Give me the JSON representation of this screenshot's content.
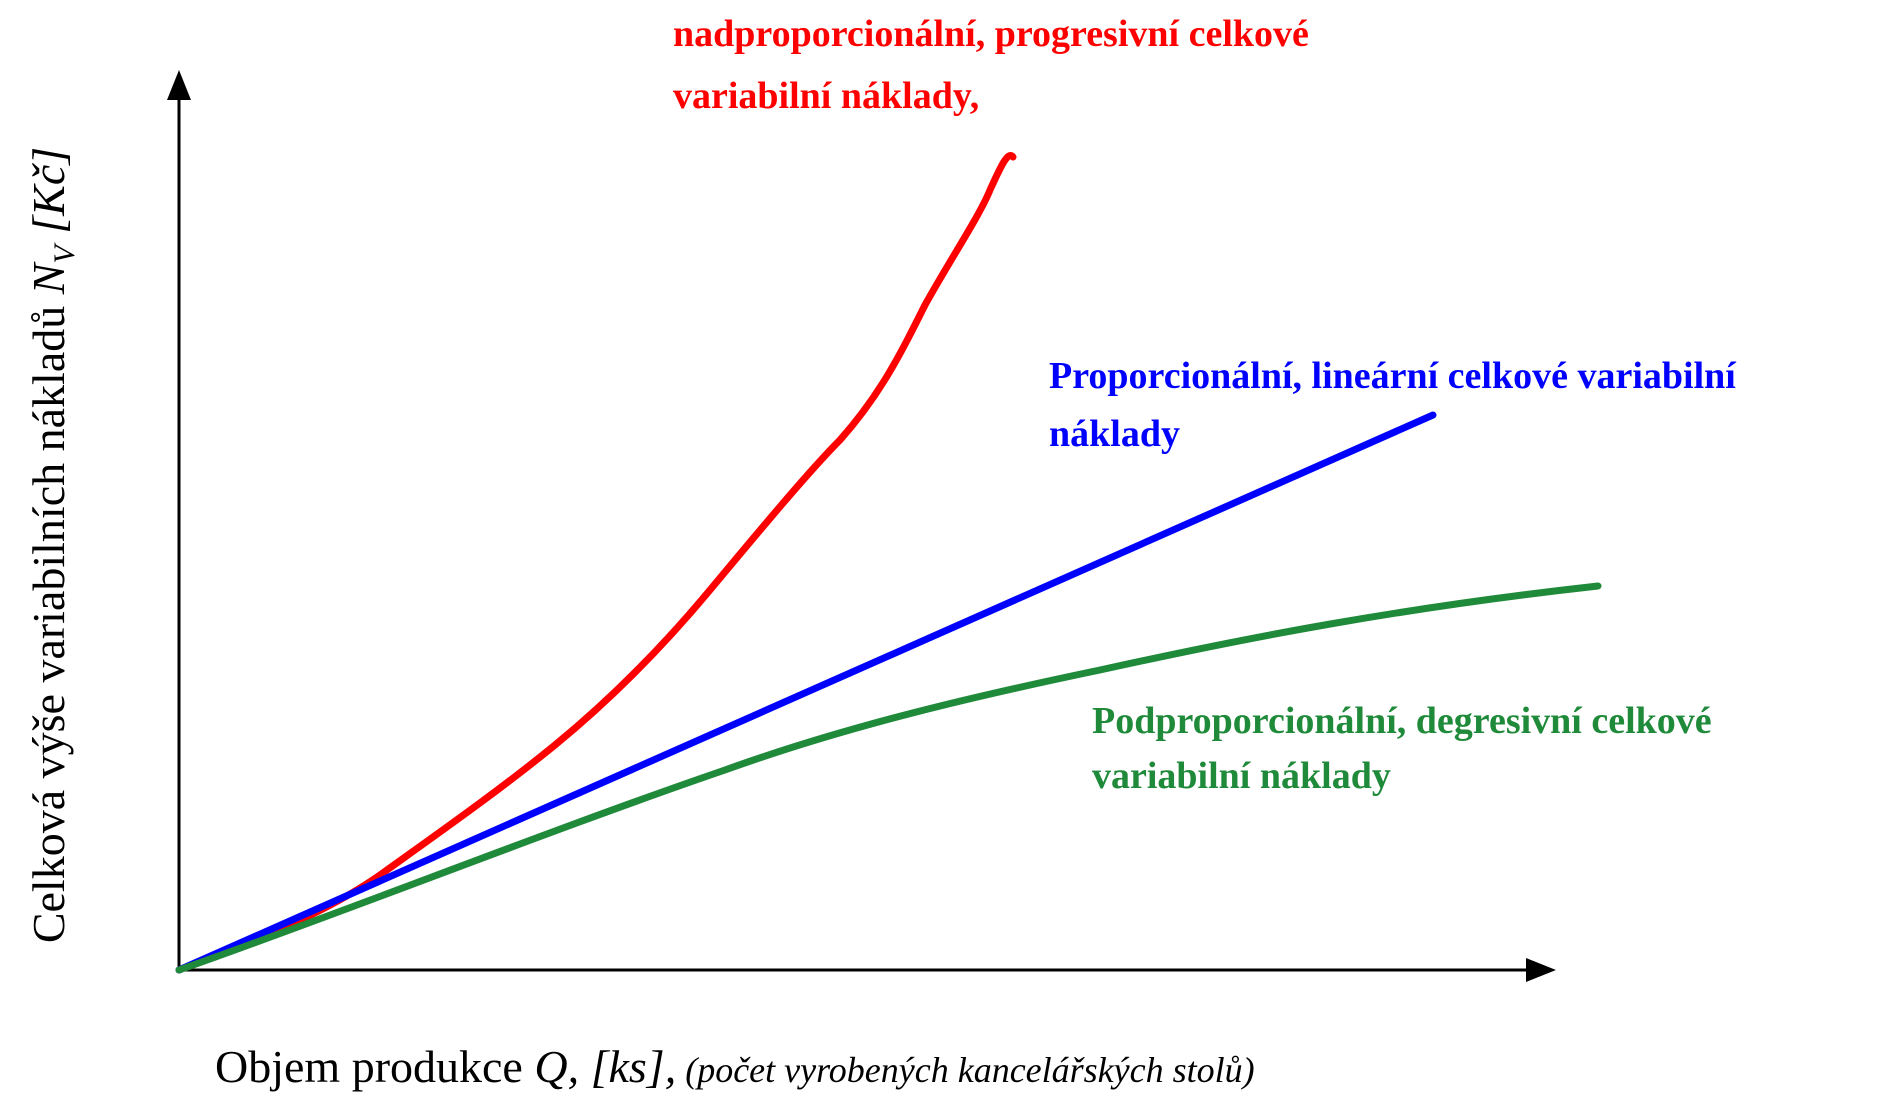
{
  "diagram": {
    "curves": [
      {
        "label": [
          "nadproporcionální, progresivní celkové",
          "variabilní náklady,"
        ],
        "color": "#ff0000"
      },
      {
        "label": [
          "Proporcionální, lineární celkové variabilní",
          "náklady"
        ],
        "color": "#0000ff"
      },
      {
        "label": [
          "Podproporcionální, degresivní celkové",
          "variabilní náklady"
        ],
        "color": "#1f8a3a"
      }
    ],
    "y_axis_label": {
      "text": "Celková výše variabilních nákladů ",
      "variable": "N",
      "subscript": "V",
      "unit": " [Kč]"
    },
    "x_axis_label": {
      "text": "Objem produkce ",
      "variable": "Q, [ks],",
      "note": " (počet vyrobených kancelářských stolů)"
    }
  }
}
